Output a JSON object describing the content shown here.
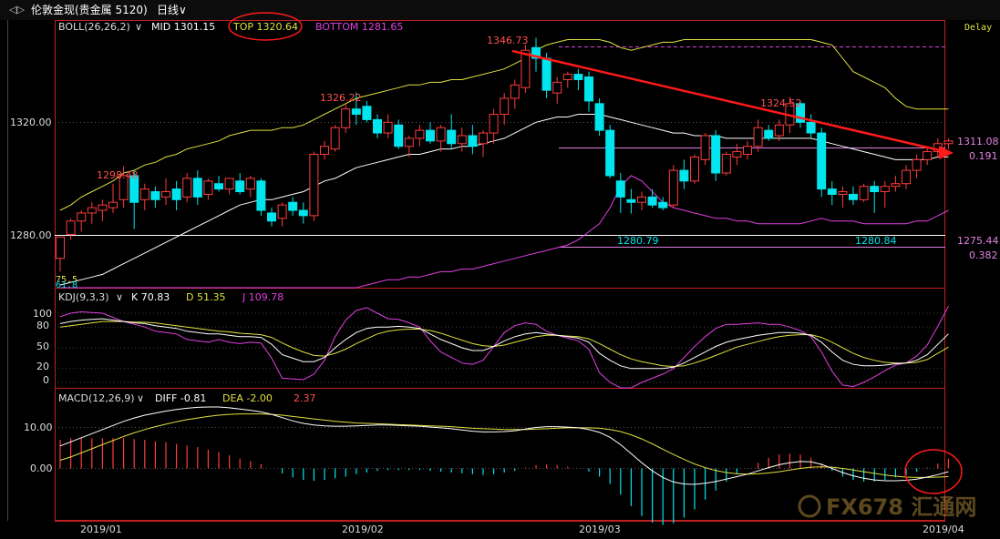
{
  "header": {
    "nav_arrows": "◁▷",
    "symbol": "伦敦金现(贵金属 5120)",
    "period": "日线",
    "period_caret": "∨",
    "delay": "Delay"
  },
  "colors": {
    "up": "#ff3b3b",
    "down": "#00e5ee",
    "mid": "#ffffff",
    "top": "#e0e040",
    "bottom": "#e040e0",
    "frame": "#c02020",
    "trend": "#ff1a1a",
    "ellipse": "#ff1a1a"
  },
  "boll": {
    "name": "BOLL(26,26,2)",
    "caret": "∨",
    "mid_label": "MID 1301.15",
    "top_label": "TOP 1320.64",
    "bottom_label": "BOTTOM 1281.65"
  },
  "kdj": {
    "name": "KDJ(9,3,3)",
    "caret": "∨",
    "k_label": "K 70.83",
    "d_label": "D 51.35",
    "j_label": "J 109.78",
    "ticks": [
      "100",
      "80",
      "50",
      "20",
      "0"
    ]
  },
  "macd": {
    "name": "MACD(12,26,9)",
    "caret": "∨",
    "diff_label": "DIFF -0.81",
    "dea_label": "DEA -2.00",
    "macd_label": "2.37",
    "ticks": [
      "10.00",
      "0.00"
    ]
  },
  "price_axis": {
    "ticks": [
      "1320.00",
      "1280.00"
    ],
    "left_marks": [
      "75.5",
      "61.8"
    ]
  },
  "annotations": {
    "high_1": "1298.48",
    "high_2": "1326.22",
    "high_3": "1346.73",
    "high_4": "1324.52",
    "low_1": "1280.79",
    "low_2": "1280.84",
    "level_upper": "1311.08",
    "level_lower": "1275.44",
    "fib_upper": "0.191",
    "fib_lower": "0.382"
  },
  "x_labels": [
    "2019/01",
    "2019/02",
    "2019/03",
    "2019/04"
  ],
  "watermark": "FX678 汇通网",
  "chart_data": {
    "type": "candlestick",
    "ylim": [
      1253,
      1353
    ],
    "candles": [
      {
        "o": 1264.0,
        "h": 1272.0,
        "l": 1259.0,
        "c": 1272.0
      },
      {
        "o": 1273.0,
        "h": 1279.0,
        "l": 1271.0,
        "c": 1278.0
      },
      {
        "o": 1278.0,
        "h": 1282.0,
        "l": 1274.0,
        "c": 1281.0
      },
      {
        "o": 1281.0,
        "h": 1285.0,
        "l": 1277.0,
        "c": 1283.0
      },
      {
        "o": 1282.0,
        "h": 1286.0,
        "l": 1278.0,
        "c": 1284.0
      },
      {
        "o": 1283.0,
        "h": 1292.0,
        "l": 1281.0,
        "c": 1285.0
      },
      {
        "o": 1286.0,
        "h": 1298.5,
        "l": 1283.0,
        "c": 1295.0
      },
      {
        "o": 1295.0,
        "h": 1297.0,
        "l": 1275.0,
        "c": 1285.0
      },
      {
        "o": 1286.0,
        "h": 1292.0,
        "l": 1282.0,
        "c": 1290.0
      },
      {
        "o": 1289.0,
        "h": 1291.0,
        "l": 1283.0,
        "c": 1286.0
      },
      {
        "o": 1287.0,
        "h": 1294.0,
        "l": 1284.0,
        "c": 1289.0
      },
      {
        "o": 1290.0,
        "h": 1293.0,
        "l": 1282.0,
        "c": 1286.0
      },
      {
        "o": 1287.0,
        "h": 1296.0,
        "l": 1285.0,
        "c": 1294.0
      },
      {
        "o": 1294.0,
        "h": 1297.0,
        "l": 1284.0,
        "c": 1287.0
      },
      {
        "o": 1288.0,
        "h": 1294.0,
        "l": 1286.0,
        "c": 1293.0
      },
      {
        "o": 1292.0,
        "h": 1295.0,
        "l": 1289.0,
        "c": 1290.0
      },
      {
        "o": 1290.0,
        "h": 1294.0,
        "l": 1288.0,
        "c": 1294.0
      },
      {
        "o": 1293.0,
        "h": 1296.0,
        "l": 1288.0,
        "c": 1289.0
      },
      {
        "o": 1290.0,
        "h": 1295.0,
        "l": 1287.0,
        "c": 1294.0
      },
      {
        "o": 1293.0,
        "h": 1294.0,
        "l": 1280.0,
        "c": 1282.0
      },
      {
        "o": 1281.0,
        "h": 1283.0,
        "l": 1276.0,
        "c": 1278.0
      },
      {
        "o": 1279.0,
        "h": 1285.0,
        "l": 1276.0,
        "c": 1284.0
      },
      {
        "o": 1285.0,
        "h": 1287.0,
        "l": 1280.0,
        "c": 1282.0
      },
      {
        "o": 1282.0,
        "h": 1285.0,
        "l": 1277.0,
        "c": 1280.0
      },
      {
        "o": 1280.0,
        "h": 1304.0,
        "l": 1278.0,
        "c": 1303.0
      },
      {
        "o": 1303.0,
        "h": 1308.0,
        "l": 1301.0,
        "c": 1306.0
      },
      {
        "o": 1305.0,
        "h": 1314.0,
        "l": 1304.0,
        "c": 1313.0
      },
      {
        "o": 1313.0,
        "h": 1322.0,
        "l": 1311.0,
        "c": 1320.0
      },
      {
        "o": 1320.0,
        "h": 1326.2,
        "l": 1314.0,
        "c": 1318.0
      },
      {
        "o": 1321.0,
        "h": 1323.0,
        "l": 1315.0,
        "c": 1316.0
      },
      {
        "o": 1316.0,
        "h": 1318.0,
        "l": 1309.0,
        "c": 1311.0
      },
      {
        "o": 1311.0,
        "h": 1318.0,
        "l": 1309.0,
        "c": 1315.0
      },
      {
        "o": 1314.0,
        "h": 1316.0,
        "l": 1305.0,
        "c": 1306.0
      },
      {
        "o": 1306.0,
        "h": 1310.0,
        "l": 1302.0,
        "c": 1309.0
      },
      {
        "o": 1309.0,
        "h": 1314.0,
        "l": 1306.0,
        "c": 1312.0
      },
      {
        "o": 1312.0,
        "h": 1315.0,
        "l": 1307.0,
        "c": 1308.0
      },
      {
        "o": 1308.0,
        "h": 1314.0,
        "l": 1304.0,
        "c": 1313.0
      },
      {
        "o": 1312.0,
        "h": 1318.0,
        "l": 1305.0,
        "c": 1307.0
      },
      {
        "o": 1307.0,
        "h": 1313.0,
        "l": 1304.0,
        "c": 1310.0
      },
      {
        "o": 1310.0,
        "h": 1314.0,
        "l": 1303.0,
        "c": 1306.0
      },
      {
        "o": 1307.0,
        "h": 1312.0,
        "l": 1302.0,
        "c": 1311.0
      },
      {
        "o": 1311.0,
        "h": 1320.0,
        "l": 1307.0,
        "c": 1318.0
      },
      {
        "o": 1318.0,
        "h": 1326.0,
        "l": 1314.0,
        "c": 1324.0
      },
      {
        "o": 1324.0,
        "h": 1331.0,
        "l": 1320.0,
        "c": 1329.0
      },
      {
        "o": 1328.0,
        "h": 1344.0,
        "l": 1326.0,
        "c": 1342.0
      },
      {
        "o": 1343.0,
        "h": 1346.7,
        "l": 1334.0,
        "c": 1339.0
      },
      {
        "o": 1339.0,
        "h": 1341.0,
        "l": 1324.0,
        "c": 1327.0
      },
      {
        "o": 1326.0,
        "h": 1332.0,
        "l": 1322.0,
        "c": 1330.0
      },
      {
        "o": 1331.0,
        "h": 1334.0,
        "l": 1328.0,
        "c": 1333.0
      },
      {
        "o": 1333.0,
        "h": 1335.0,
        "l": 1327.0,
        "c": 1331.0
      },
      {
        "o": 1332.0,
        "h": 1334.0,
        "l": 1319.0,
        "c": 1323.0
      },
      {
        "o": 1322.0,
        "h": 1324.0,
        "l": 1310.0,
        "c": 1312.0
      },
      {
        "o": 1312.0,
        "h": 1314.0,
        "l": 1294.0,
        "c": 1295.0
      },
      {
        "o": 1293.0,
        "h": 1296.0,
        "l": 1281.0,
        "c": 1287.0
      },
      {
        "o": 1286.0,
        "h": 1290.0,
        "l": 1280.8,
        "c": 1285.0
      },
      {
        "o": 1285.0,
        "h": 1289.0,
        "l": 1282.0,
        "c": 1287.0
      },
      {
        "o": 1287.0,
        "h": 1290.0,
        "l": 1283.0,
        "c": 1284.0
      },
      {
        "o": 1285.0,
        "h": 1287.0,
        "l": 1282.0,
        "c": 1283.0
      },
      {
        "o": 1284.0,
        "h": 1299.0,
        "l": 1283.0,
        "c": 1297.0
      },
      {
        "o": 1297.0,
        "h": 1301.0,
        "l": 1290.0,
        "c": 1293.0
      },
      {
        "o": 1293.0,
        "h": 1303.0,
        "l": 1292.0,
        "c": 1302.0
      },
      {
        "o": 1301.0,
        "h": 1311.0,
        "l": 1299.0,
        "c": 1310.0
      },
      {
        "o": 1310.0,
        "h": 1312.0,
        "l": 1293.0,
        "c": 1296.0
      },
      {
        "o": 1296.0,
        "h": 1304.0,
        "l": 1295.0,
        "c": 1303.0
      },
      {
        "o": 1302.0,
        "h": 1307.0,
        "l": 1299.0,
        "c": 1304.0
      },
      {
        "o": 1303.0,
        "h": 1308.0,
        "l": 1301.0,
        "c": 1306.0
      },
      {
        "o": 1306.0,
        "h": 1316.0,
        "l": 1304.0,
        "c": 1313.0
      },
      {
        "o": 1312.0,
        "h": 1314.0,
        "l": 1308.0,
        "c": 1309.0
      },
      {
        "o": 1310.0,
        "h": 1316.0,
        "l": 1308.0,
        "c": 1314.0
      },
      {
        "o": 1314.0,
        "h": 1324.5,
        "l": 1311.0,
        "c": 1322.0
      },
      {
        "o": 1322.0,
        "h": 1323.0,
        "l": 1313.0,
        "c": 1315.0
      },
      {
        "o": 1315.0,
        "h": 1318.0,
        "l": 1309.0,
        "c": 1311.0
      },
      {
        "o": 1311.0,
        "h": 1313.0,
        "l": 1287.0,
        "c": 1290.0
      },
      {
        "o": 1290.0,
        "h": 1293.0,
        "l": 1284.0,
        "c": 1288.0
      },
      {
        "o": 1288.0,
        "h": 1291.0,
        "l": 1283.0,
        "c": 1289.0
      },
      {
        "o": 1288.0,
        "h": 1291.0,
        "l": 1284.0,
        "c": 1286.0
      },
      {
        "o": 1286.0,
        "h": 1292.0,
        "l": 1285.0,
        "c": 1291.0
      },
      {
        "o": 1291.0,
        "h": 1293.0,
        "l": 1281.0,
        "c": 1289.0
      },
      {
        "o": 1289.0,
        "h": 1293.0,
        "l": 1283.0,
        "c": 1291.0
      },
      {
        "o": 1291.0,
        "h": 1295.0,
        "l": 1289.0,
        "c": 1292.0
      },
      {
        "o": 1292.0,
        "h": 1299.0,
        "l": 1290.0,
        "c": 1297.0
      },
      {
        "o": 1297.0,
        "h": 1303.0,
        "l": 1294.0,
        "c": 1301.0
      },
      {
        "o": 1301.0,
        "h": 1306.0,
        "l": 1299.0,
        "c": 1304.0
      },
      {
        "o": 1304.0,
        "h": 1309.0,
        "l": 1302.0,
        "c": 1307.0
      },
      {
        "o": 1307.0,
        "h": 1309.0,
        "l": 1305.0,
        "c": 1308.0
      }
    ],
    "boll_mid": [
      1254,
      1255,
      1256,
      1257,
      1258,
      1260,
      1262,
      1264,
      1266,
      1268,
      1270,
      1272,
      1274,
      1276,
      1278,
      1280,
      1282,
      1284,
      1285,
      1286,
      1286,
      1287,
      1288,
      1289,
      1291,
      1293,
      1294,
      1296,
      1298,
      1299,
      1300,
      1301,
      1302,
      1303,
      1303,
      1304,
      1305,
      1305,
      1306,
      1306,
      1307,
      1308,
      1309,
      1311,
      1313,
      1315,
      1316,
      1317,
      1317,
      1318,
      1318,
      1318,
      1317,
      1316,
      1315,
      1314,
      1313,
      1312,
      1311,
      1311,
      1310,
      1310,
      1310,
      1309,
      1309,
      1309,
      1309,
      1309,
      1309,
      1309,
      1309,
      1309,
      1308,
      1307,
      1306,
      1305,
      1304,
      1303,
      1302,
      1301,
      1301,
      1301,
      1301,
      1302,
      1302
    ],
    "boll_top": [
      1282,
      1284,
      1287,
      1289,
      1291,
      1293,
      1296,
      1297,
      1299,
      1300,
      1302,
      1303,
      1305,
      1306,
      1307,
      1308,
      1310,
      1311,
      1312,
      1312,
      1312,
      1313,
      1313,
      1314,
      1316,
      1318,
      1320,
      1322,
      1324,
      1325,
      1326,
      1327,
      1328,
      1329,
      1329,
      1330,
      1330,
      1331,
      1331,
      1332,
      1333,
      1334,
      1335,
      1337,
      1339,
      1342,
      1344,
      1345,
      1346,
      1346,
      1346,
      1346,
      1345,
      1343,
      1342,
      1343,
      1344,
      1345,
      1345,
      1346,
      1346,
      1346,
      1346,
      1346,
      1346,
      1346,
      1346,
      1346,
      1346,
      1346,
      1346,
      1346,
      1345,
      1344,
      1339,
      1334,
      1332,
      1330,
      1328,
      1324,
      1321,
      1320,
      1320,
      1320,
      1320
    ],
    "boll_bottom": [
      1226,
      1227,
      1228,
      1229,
      1230,
      1231,
      1232,
      1233,
      1234,
      1235,
      1236,
      1237,
      1238,
      1239,
      1240,
      1241,
      1242,
      1243,
      1244,
      1245,
      1246,
      1247,
      1248,
      1249,
      1250,
      1251,
      1251,
      1252,
      1253,
      1254,
      1255,
      1256,
      1256,
      1257,
      1257,
      1258,
      1259,
      1259,
      1260,
      1260,
      1261,
      1262,
      1263,
      1264,
      1265,
      1266,
      1267,
      1268,
      1269,
      1271,
      1274,
      1277,
      1283,
      1291,
      1295,
      1293,
      1289,
      1285,
      1283,
      1282,
      1281,
      1280,
      1279,
      1279,
      1278,
      1278,
      1277,
      1277,
      1277,
      1277,
      1277,
      1278,
      1279,
      1278,
      1278,
      1278,
      1277,
      1277,
      1277,
      1277,
      1277,
      1278,
      1278,
      1280,
      1282
    ],
    "kdj_k": [
      85,
      88,
      90,
      91,
      92,
      90,
      88,
      86,
      85,
      82,
      80,
      78,
      74,
      72,
      70,
      70,
      68,
      66,
      66,
      65,
      55,
      40,
      35,
      30,
      30,
      36,
      50,
      62,
      72,
      78,
      80,
      80,
      81,
      80,
      78,
      70,
      62,
      56,
      50,
      46,
      46,
      52,
      60,
      66,
      70,
      72,
      70,
      68,
      66,
      64,
      58,
      42,
      32,
      24,
      20,
      20,
      20,
      20,
      22,
      28,
      36,
      44,
      52,
      58,
      62,
      65,
      68,
      70,
      72,
      72,
      71,
      68,
      58,
      44,
      32,
      26,
      24,
      24,
      25,
      27,
      28,
      32,
      40,
      55,
      70
    ],
    "kdj_d": [
      80,
      82,
      84,
      86,
      88,
      88,
      88,
      87,
      87,
      86,
      84,
      82,
      80,
      78,
      76,
      74,
      73,
      71,
      70,
      69,
      65,
      57,
      50,
      44,
      39,
      38,
      42,
      48,
      56,
      63,
      70,
      74,
      76,
      77,
      77,
      75,
      71,
      66,
      61,
      56,
      53,
      52,
      54,
      58,
      62,
      66,
      68,
      68,
      67,
      66,
      63,
      56,
      48,
      40,
      34,
      30,
      27,
      24,
      23,
      24,
      28,
      33,
      39,
      45,
      51,
      55,
      59,
      63,
      66,
      68,
      69,
      69,
      65,
      58,
      50,
      42,
      36,
      32,
      29,
      28,
      28,
      29,
      33,
      42,
      51
    ],
    "kdj_j": [
      95,
      100,
      102,
      101,
      100,
      94,
      88,
      84,
      80,
      74,
      72,
      70,
      62,
      60,
      58,
      62,
      58,
      56,
      58,
      57,
      35,
      6,
      5,
      4,
      12,
      32,
      66,
      90,
      104,
      108,
      100,
      92,
      91,
      86,
      80,
      60,
      44,
      36,
      28,
      26,
      32,
      52,
      72,
      82,
      86,
      84,
      74,
      68,
      64,
      60,
      48,
      14,
      0,
      -8,
      -8,
      0,
      6,
      12,
      20,
      36,
      52,
      66,
      78,
      84,
      84,
      85,
      86,
      84,
      84,
      80,
      75,
      66,
      44,
      16,
      -4,
      -6,
      0,
      8,
      17,
      25,
      28,
      38,
      54,
      81,
      110
    ],
    "macd_diff": [
      5.5,
      6.5,
      7.5,
      8.5,
      9.5,
      10.5,
      11.5,
      12.3,
      13.0,
      13.5,
      14.0,
      14.4,
      14.7,
      14.9,
      15.0,
      15.0,
      14.8,
      14.5,
      14.2,
      13.8,
      13.2,
      12.4,
      11.6,
      11.0,
      10.6,
      10.4,
      10.3,
      10.3,
      10.4,
      10.5,
      10.6,
      10.6,
      10.5,
      10.4,
      10.3,
      10.1,
      9.9,
      9.7,
      9.4,
      9.1,
      8.9,
      8.9,
      9.0,
      9.2,
      9.6,
      10.0,
      10.2,
      10.2,
      10.1,
      9.9,
      9.5,
      8.8,
      7.6,
      5.8,
      3.6,
      1.4,
      -0.6,
      -2.2,
      -3.3,
      -3.8,
      -3.9,
      -3.6,
      -3.2,
      -2.6,
      -2.0,
      -1.4,
      -0.6,
      0.2,
      0.9,
      1.4,
      1.7,
      1.6,
      1.0,
      0.0,
      -1.0,
      -1.8,
      -2.4,
      -2.8,
      -3.0,
      -3.0,
      -2.9,
      -2.6,
      -2.1,
      -1.5,
      -0.8
    ],
    "macd_dea": [
      2.0,
      2.8,
      3.8,
      4.8,
      5.8,
      6.8,
      7.8,
      8.7,
      9.5,
      10.2,
      10.8,
      11.4,
      11.9,
      12.3,
      12.7,
      13.0,
      13.2,
      13.3,
      13.3,
      13.3,
      13.2,
      13.0,
      12.7,
      12.4,
      12.1,
      11.8,
      11.5,
      11.3,
      11.1,
      11.0,
      10.9,
      10.8,
      10.7,
      10.6,
      10.5,
      10.4,
      10.3,
      10.2,
      10.0,
      9.8,
      9.7,
      9.6,
      9.5,
      9.5,
      9.5,
      9.6,
      9.7,
      9.8,
      9.9,
      9.9,
      9.9,
      9.8,
      9.5,
      9.0,
      8.2,
      7.2,
      6.0,
      4.7,
      3.4,
      2.2,
      1.1,
      0.2,
      -0.5,
      -1.0,
      -1.3,
      -1.4,
      -1.3,
      -1.1,
      -0.8,
      -0.4,
      0.0,
      0.3,
      0.4,
      0.3,
      0.0,
      -0.4,
      -0.8,
      -1.2,
      -1.6,
      -1.9,
      -2.1,
      -2.2,
      -2.2,
      -2.1,
      -2.0
    ],
    "macd_hist": [
      7.0,
      7.4,
      7.4,
      7.4,
      7.4,
      7.4,
      7.4,
      7.2,
      7.0,
      6.6,
      6.4,
      6.0,
      5.6,
      5.2,
      4.6,
      4.0,
      3.2,
      2.4,
      1.8,
      1.0,
      0.0,
      -1.2,
      -2.2,
      -2.8,
      -3.0,
      -2.8,
      -2.4,
      -2.0,
      -1.4,
      -1.0,
      -0.6,
      -0.4,
      -0.4,
      -0.4,
      -0.4,
      -0.6,
      -0.8,
      -1.0,
      -1.2,
      -1.4,
      -1.6,
      -1.4,
      -1.0,
      -0.6,
      0.2,
      0.8,
      1.0,
      0.8,
      0.4,
      0.0,
      -0.8,
      -2.0,
      -3.8,
      -6.4,
      -9.2,
      -11.6,
      -13.2,
      -13.8,
      -13.4,
      -12.0,
      -10.0,
      -7.6,
      -5.4,
      -3.2,
      -1.4,
      0.0,
      1.4,
      2.6,
      3.4,
      3.6,
      3.4,
      2.6,
      1.2,
      -0.6,
      -2.0,
      -2.8,
      -3.2,
      -3.2,
      -2.8,
      -2.2,
      -1.6,
      -0.8,
      0.2,
      1.2,
      2.4
    ],
    "macd_ylim": [
      -16,
      20
    ]
  }
}
